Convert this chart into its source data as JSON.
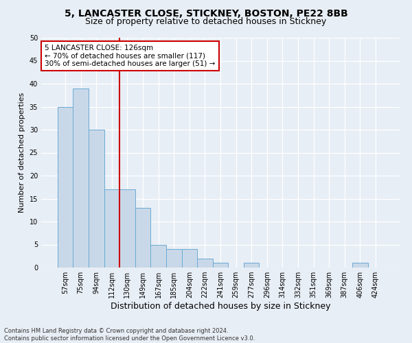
{
  "title1": "5, LANCASTER CLOSE, STICKNEY, BOSTON, PE22 8BB",
  "title2": "Size of property relative to detached houses in Stickney",
  "xlabel": "Distribution of detached houses by size in Stickney",
  "ylabel": "Number of detached properties",
  "footer": "Contains HM Land Registry data © Crown copyright and database right 2024.\nContains public sector information licensed under the Open Government Licence v3.0.",
  "bins": [
    "57sqm",
    "75sqm",
    "94sqm",
    "112sqm",
    "130sqm",
    "149sqm",
    "167sqm",
    "185sqm",
    "204sqm",
    "222sqm",
    "241sqm",
    "259sqm",
    "277sqm",
    "296sqm",
    "314sqm",
    "332sqm",
    "351sqm",
    "369sqm",
    "387sqm",
    "406sqm",
    "424sqm"
  ],
  "values": [
    35,
    39,
    30,
    17,
    17,
    13,
    5,
    4,
    4,
    2,
    1,
    0,
    1,
    0,
    0,
    0,
    0,
    0,
    0,
    1,
    0
  ],
  "bar_color": "#c8d8e8",
  "bar_edge_color": "#6aaad4",
  "vline_color": "#cc0000",
  "annotation_text": "5 LANCASTER CLOSE: 126sqm\n← 70% of detached houses are smaller (117)\n30% of semi-detached houses are larger (51) →",
  "annotation_box_color": "#ffffff",
  "annotation_box_edge": "#cc0000",
  "ylim": [
    0,
    50
  ],
  "yticks": [
    0,
    5,
    10,
    15,
    20,
    25,
    30,
    35,
    40,
    45,
    50
  ],
  "bg_color": "#e8eef5",
  "plot_bg_color": "#e8eef5",
  "grid_color": "#ffffff",
  "title1_fontsize": 10,
  "title2_fontsize": 9,
  "ylabel_fontsize": 8,
  "xlabel_fontsize": 9,
  "tick_fontsize": 7,
  "footer_fontsize": 6
}
